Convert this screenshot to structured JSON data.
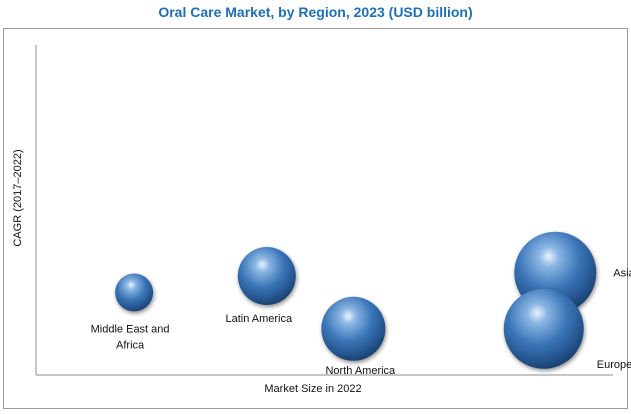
{
  "chart_data": {
    "type": "scatter",
    "title": "Oral Care Market, by Region, 2023 (USD billion)",
    "xlabel": "Market Size in 2022",
    "ylabel": "CAGR (2017–2022)",
    "grid": false,
    "legend": "none",
    "axis_ticks": "none",
    "xlim": [
      0,
      100
    ],
    "ylim": [
      0,
      100
    ],
    "bubble_color": "#3a75b8",
    "points": [
      {
        "label": "Middle East and",
        "label2": "Africa",
        "x": 17,
        "y": 25,
        "size": 19
      },
      {
        "label": "Latin America",
        "x": 40,
        "y": 30,
        "size": 29
      },
      {
        "label": "North America",
        "x": 55,
        "y": 14,
        "size": 32
      },
      {
        "label": "Asia Pacifc",
        "x": 90,
        "y": 31,
        "size": 41
      },
      {
        "label": "Europe",
        "x": 88,
        "y": 14,
        "size": 40
      }
    ]
  }
}
